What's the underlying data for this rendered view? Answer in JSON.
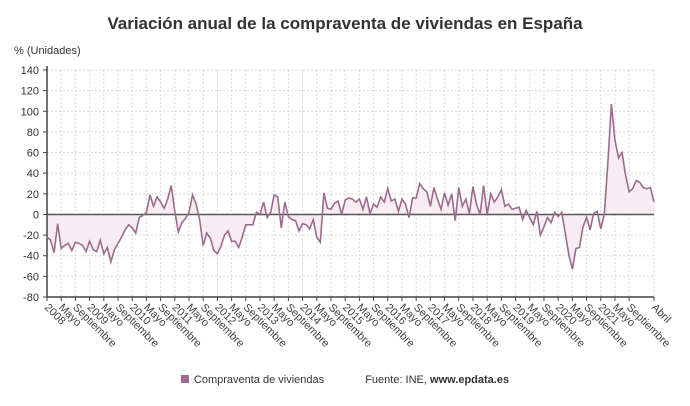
{
  "chart_data": {
    "type": "area",
    "title": "Variación anual de la compraventa de viviendas en España",
    "ylabel": "% (Unidades)",
    "ylim": [
      -80,
      140
    ],
    "y_ticks": [
      140,
      120,
      100,
      80,
      60,
      40,
      20,
      0,
      -20,
      -40,
      -60,
      -80
    ],
    "x_start": "2008-01",
    "x_end": "2022-04",
    "frequency": "monthly",
    "x_tick_labels": [
      "2008",
      "Mayo",
      "Septiembre",
      "2009",
      "Mayo",
      "Septiembre",
      "2010",
      "Mayo",
      "Septiembre",
      "2011",
      "Mayo",
      "Septiembre",
      "2012",
      "Mayo",
      "Septiembre",
      "2013",
      "Mayo",
      "Septiembre",
      "2014",
      "Mayo",
      "Septiembre",
      "2015",
      "Mayo",
      "Septiembre",
      "2016",
      "Mayo",
      "Septiembre",
      "2017",
      "Mayo",
      "Septiembre",
      "2018",
      "Mayo",
      "Septiembre",
      "2019",
      "Mayo",
      "Septiembre",
      "2020",
      "Mayo",
      "Septiembre",
      "2021",
      "Mayo",
      "Septiembre",
      "Abril"
    ],
    "grid": true,
    "legend_position": "bottom",
    "series": [
      {
        "name": "Compraventa de viviendas",
        "color": "#9c6b8d",
        "fill": "#f6ecf1",
        "values": [
          -22,
          -25,
          -37,
          -9,
          -33,
          -30,
          -28,
          -35,
          -27,
          -28,
          -30,
          -36,
          -26,
          -34,
          -36,
          -25,
          -38,
          -32,
          -46,
          -34,
          -28,
          -22,
          -15,
          -10,
          -13,
          -18,
          -3,
          -1,
          2,
          19,
          8,
          17,
          12,
          6,
          15,
          28,
          3,
          -17,
          -8,
          -4,
          2,
          19,
          10,
          -5,
          -30,
          -18,
          -23,
          -35,
          -38,
          -31,
          -20,
          -16,
          -26,
          -26,
          -32,
          -22,
          -10,
          -10,
          -10,
          2,
          0,
          12,
          -3,
          2,
          19,
          17,
          -13,
          12,
          -2,
          -5,
          -6,
          -16,
          -9,
          -10,
          -14,
          -5,
          -22,
          -27,
          21,
          6,
          5,
          11,
          13,
          0,
          14,
          16,
          15,
          12,
          15,
          5,
          17,
          1,
          10,
          7,
          17,
          12,
          25,
          13,
          15,
          3,
          15,
          10,
          -3,
          16,
          16,
          30,
          25,
          22,
          8,
          26,
          15,
          5,
          21,
          9,
          20,
          -6,
          26,
          8,
          15,
          1,
          27,
          10,
          0,
          28,
          0,
          20,
          12,
          17,
          24,
          8,
          10,
          5,
          6,
          7,
          -5,
          4,
          -3,
          -10,
          3,
          -20,
          -12,
          -3,
          -8,
          2,
          -2,
          2,
          -18,
          -39,
          -53,
          -33,
          -32,
          -12,
          -3,
          -15,
          1,
          3,
          -14,
          0,
          50,
          107,
          72,
          55,
          60,
          38,
          22,
          25,
          33,
          31,
          26,
          25,
          26,
          12
        ]
      }
    ],
    "source_label": "Fuente: INE,",
    "source_site": "www.epdata.es"
  }
}
